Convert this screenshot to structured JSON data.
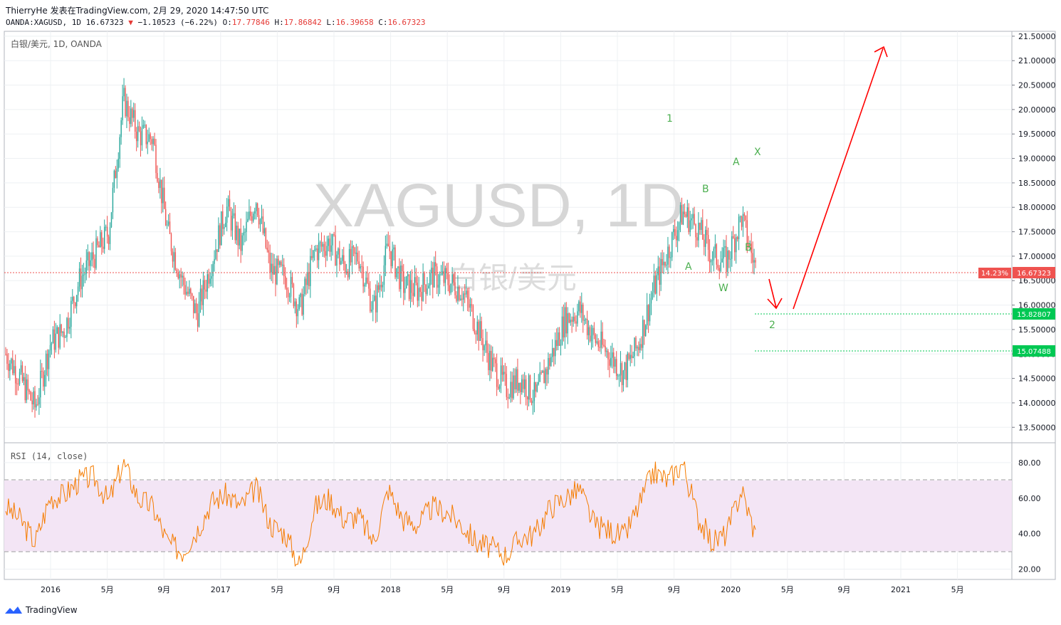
{
  "header": {
    "author": "ThierryHe",
    "published": "发表在TradingView.com, 2月 29, 2020 14:47:50 UTC",
    "symbol_line": "OANDA:XAGUSD, 1D 16.67323",
    "change": "−1.10523 (−6.22%)",
    "o_label": "O:",
    "o_value": "17.77846",
    "h_label": "H:",
    "h_value": "17.86842",
    "l_label": "L:",
    "l_value": "16.39658",
    "c_label": "C:",
    "c_value": "16.67323"
  },
  "pane_label": "白银/美元, 1D, OANDA",
  "watermark": {
    "main": "XAGUSD, 1D",
    "sub": "白银/美元"
  },
  "rsi_label": "RSI (14, close)",
  "price_badges": {
    "pct": "14.23%",
    "last": "16.67323",
    "level1": "15.82807",
    "level2": "15.07488"
  },
  "footer": {
    "brand": "TradingView"
  },
  "colors": {
    "up": "#26a69a",
    "down": "#ef5350",
    "rsi_line": "#f57c00",
    "rsi_band": "#f3e5f5",
    "annot": "#4caf50",
    "arrow": "#ff0000",
    "badge_red": "#ef5350",
    "badge_green": "#00c853"
  },
  "chart_data": {
    "type": "line",
    "title": "XAGUSD, 1D",
    "subtitle": "白银/美元",
    "ylim": [
      13.3,
      21.6
    ],
    "y_ticks": [
      "21.50000",
      "21.00000",
      "20.50000",
      "20.00000",
      "19.50000",
      "19.00000",
      "18.50000",
      "18.00000",
      "17.50000",
      "17.00000",
      "16.50000",
      "16.00000",
      "15.50000",
      "15.00000",
      "14.50000",
      "14.00000",
      "13.50000"
    ],
    "x_ticks": [
      "2016",
      "5月",
      "9月",
      "2017",
      "5月",
      "9月",
      "2018",
      "5月",
      "9月",
      "2019",
      "5月",
      "9月",
      "2020",
      "5月",
      "9月",
      "2021",
      "5月"
    ],
    "x": [
      "2015-11",
      "2015-12",
      "2016-01",
      "2016-02",
      "2016-03",
      "2016-04",
      "2016-05",
      "2016-06",
      "2016-07",
      "2016-08",
      "2016-09",
      "2016-10",
      "2016-11",
      "2016-12",
      "2017-01",
      "2017-02",
      "2017-03",
      "2017-04",
      "2017-05",
      "2017-06",
      "2017-07",
      "2017-08",
      "2017-09",
      "2017-10",
      "2017-11",
      "2017-12",
      "2018-01",
      "2018-02",
      "2018-03",
      "2018-04",
      "2018-05",
      "2018-06",
      "2018-07",
      "2018-08",
      "2018-09",
      "2018-10",
      "2018-11",
      "2018-12",
      "2019-01",
      "2019-02",
      "2019-03",
      "2019-04",
      "2019-05",
      "2019-06",
      "2019-07",
      "2019-08",
      "2019-09",
      "2019-10",
      "2019-11",
      "2019-12",
      "2020-01",
      "2020-02"
    ],
    "series": [
      {
        "values": [
          15.0,
          14.5,
          13.9,
          15.2,
          15.5,
          16.5,
          17.0,
          17.5,
          20.2,
          19.5,
          19.4,
          17.5,
          16.5,
          15.8,
          16.9,
          18.0,
          17.2,
          18.2,
          16.7,
          16.6,
          15.9,
          17.1,
          17.3,
          16.8,
          17.0,
          15.9,
          17.2,
          16.4,
          16.3,
          16.6,
          16.5,
          16.3,
          15.6,
          14.8,
          14.3,
          14.5,
          14.1,
          14.9,
          15.7,
          15.9,
          15.3,
          15.0,
          14.6,
          15.2,
          16.3,
          17.1,
          17.9,
          17.6,
          17.0,
          16.9,
          17.8,
          16.7
        ]
      },
      {
        "name": "RSI (14, close)",
        "values": [
          55,
          48,
          35,
          60,
          62,
          70,
          72,
          58,
          80,
          60,
          55,
          35,
          30,
          42,
          58,
          62,
          55,
          66,
          45,
          40,
          22,
          55,
          60,
          48,
          50,
          35,
          65,
          48,
          45,
          55,
          52,
          45,
          35,
          32,
          28,
          38,
          40,
          55,
          60,
          65,
          45,
          42,
          38,
          55,
          75,
          70,
          80,
          50,
          35,
          40,
          65,
          38
        ]
      }
    ],
    "rsi_ylim": [
      15,
      90
    ],
    "rsi_ticks": [
      "80.00",
      "60.00",
      "40.00",
      "20.00"
    ],
    "rsi_bands": [
      70,
      30
    ],
    "annotations": [
      "1",
      "A",
      "B",
      "W",
      "A",
      "B",
      "X",
      "2"
    ]
  }
}
